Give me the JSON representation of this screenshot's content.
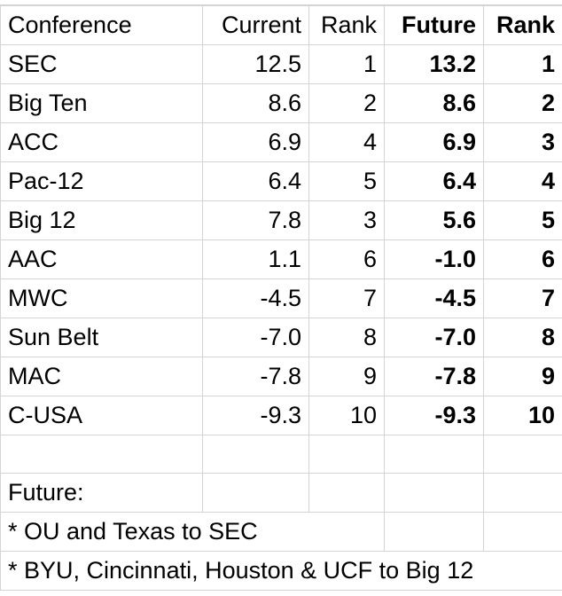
{
  "table": {
    "header": [
      "Conference",
      "Current",
      "Rank",
      "Future",
      "Rank"
    ],
    "rows": [
      [
        "SEC",
        "12.5",
        "1",
        "13.2",
        "1"
      ],
      [
        "Big Ten",
        "8.6",
        "2",
        "8.6",
        "2"
      ],
      [
        "ACC",
        "6.9",
        "4",
        "6.9",
        "3"
      ],
      [
        "Pac-12",
        "6.4",
        "5",
        "6.4",
        "4"
      ],
      [
        "Big 12",
        "7.8",
        "3",
        "5.6",
        "5"
      ],
      [
        "AAC",
        "1.1",
        "6",
        "-1.0",
        "6"
      ],
      [
        "MWC",
        "-4.5",
        "7",
        "-4.5",
        "7"
      ],
      [
        "Sun Belt",
        "-7.0",
        "8",
        "-7.0",
        "8"
      ],
      [
        "MAC",
        "-7.8",
        "9",
        "-7.8",
        "9"
      ],
      [
        "C-USA",
        "-9.3",
        "10",
        "-9.3",
        "10"
      ]
    ],
    "notes": [
      "Future:",
      "* OU and Texas to SEC",
      "* BYU, Cincinnati, Houston & UCF to Big 12"
    ]
  }
}
